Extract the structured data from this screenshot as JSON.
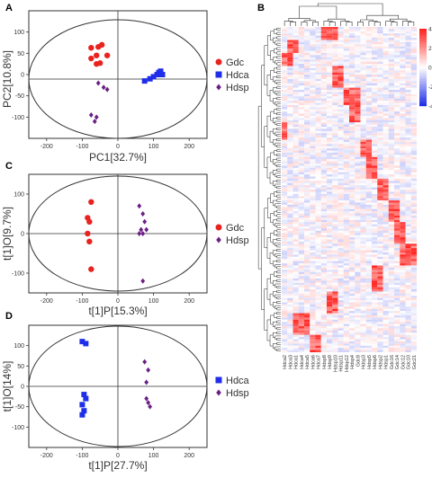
{
  "colors": {
    "gdc": "#e8231f",
    "hdca": "#1f2ee8",
    "hdsp": "#6a1f84",
    "heat_high": "#e8231f",
    "heat_mid": "#ffffff",
    "heat_low": "#1f2ee8"
  },
  "chart_data": [
    {
      "panel": "A",
      "type": "scatter",
      "xlabel": "PC1[32.7%]",
      "ylabel": "PC2[10.8%]",
      "xlim": [
        -250,
        250
      ],
      "ylim": [
        -150,
        150
      ],
      "xticks": [
        -200,
        -100,
        0,
        100,
        200
      ],
      "yticks": [
        -100,
        -50,
        0,
        50,
        100
      ],
      "ellipse": {
        "rx": 225,
        "ry": 135
      },
      "legend": "right",
      "series": [
        {
          "name": "Gdc",
          "marker": "circle",
          "color_key": "gdc",
          "x": [
            -75,
            -55,
            -45,
            -60,
            -30,
            -75,
            -50,
            -60
          ],
          "y": [
            63,
            65,
            70,
            45,
            45,
            38,
            27,
            25
          ]
        },
        {
          "name": "Hdca",
          "marker": "square",
          "color_key": "hdca",
          "x": [
            75,
            90,
            100,
            110,
            115,
            120,
            125
          ],
          "y": [
            -15,
            -10,
            -5,
            0,
            5,
            8,
            0
          ]
        },
        {
          "name": "Hdsp",
          "marker": "diamond",
          "color_key": "hdsp",
          "x": [
            -55,
            -40,
            -30,
            -75,
            -60,
            -65
          ],
          "y": [
            -20,
            -30,
            -35,
            -95,
            -100,
            -110
          ]
        }
      ]
    },
    {
      "panel": "C",
      "type": "scatter",
      "xlabel": "t[1]P[15.3%]",
      "ylabel": "t[1]O[9.7%]",
      "xlim": [
        -250,
        250
      ],
      "ylim": [
        -150,
        150
      ],
      "xticks": [
        -200,
        -100,
        0,
        100,
        200
      ],
      "yticks": [
        -100,
        0,
        100
      ],
      "ellipse": {
        "rx": 225,
        "ry": 135
      },
      "legend": "right",
      "series": [
        {
          "name": "Gdc",
          "marker": "circle",
          "color_key": "gdc",
          "x": [
            -75,
            -85,
            -80,
            -85,
            -80,
            -75
          ],
          "y": [
            80,
            40,
            30,
            0,
            -20,
            -90
          ]
        },
        {
          "name": "Hdsp",
          "marker": "diamond",
          "color_key": "hdsp",
          "x": [
            60,
            70,
            75,
            80,
            70,
            60,
            65,
            70
          ],
          "y": [
            70,
            50,
            30,
            10,
            0,
            0,
            10,
            -120
          ]
        }
      ]
    },
    {
      "panel": "D",
      "type": "scatter",
      "xlabel": "t[1]P[27.7%]",
      "ylabel": "t[1]O[14%]",
      "xlim": [
        -250,
        250
      ],
      "ylim": [
        -150,
        150
      ],
      "xticks": [
        -200,
        -100,
        0,
        100,
        200
      ],
      "yticks": [
        -100,
        -50,
        0,
        50,
        100
      ],
      "ellipse": {
        "rx": 225,
        "ry": 135
      },
      "legend": "right",
      "series": [
        {
          "name": "Hdca",
          "marker": "square",
          "color_key": "hdca",
          "x": [
            -100,
            -90,
            -95,
            -90,
            -100,
            -95,
            -100
          ],
          "y": [
            110,
            105,
            -20,
            -30,
            -45,
            -60,
            -70
          ]
        },
        {
          "name": "Hdsp",
          "marker": "diamond",
          "color_key": "hdsp",
          "x": [
            75,
            85,
            80,
            80,
            85,
            90
          ],
          "y": [
            60,
            40,
            10,
            -30,
            -40,
            -50
          ]
        }
      ]
    },
    {
      "panel": "B",
      "type": "heatmap",
      "colorbar_ticks": [
        4,
        2,
        0,
        -2,
        -4
      ],
      "column_labels": [
        "Hdca2",
        "Hdca3",
        "Hdca1",
        "Hdca4",
        "Hdca5",
        "Hdca6",
        "Hdca7",
        "Hdsp8",
        "Hdsp9",
        "Hdsp10",
        "Hdsp11",
        "Hdsp12",
        "Hdsp4",
        "Gdc8",
        "Hdsp3",
        "Hdsp5",
        "Hdsp6",
        "Hdsp2",
        "Hdsp1",
        "Gdc16",
        "Gdc14",
        "Gdc12",
        "Gdc10",
        "Gdc21"
      ]
    }
  ]
}
